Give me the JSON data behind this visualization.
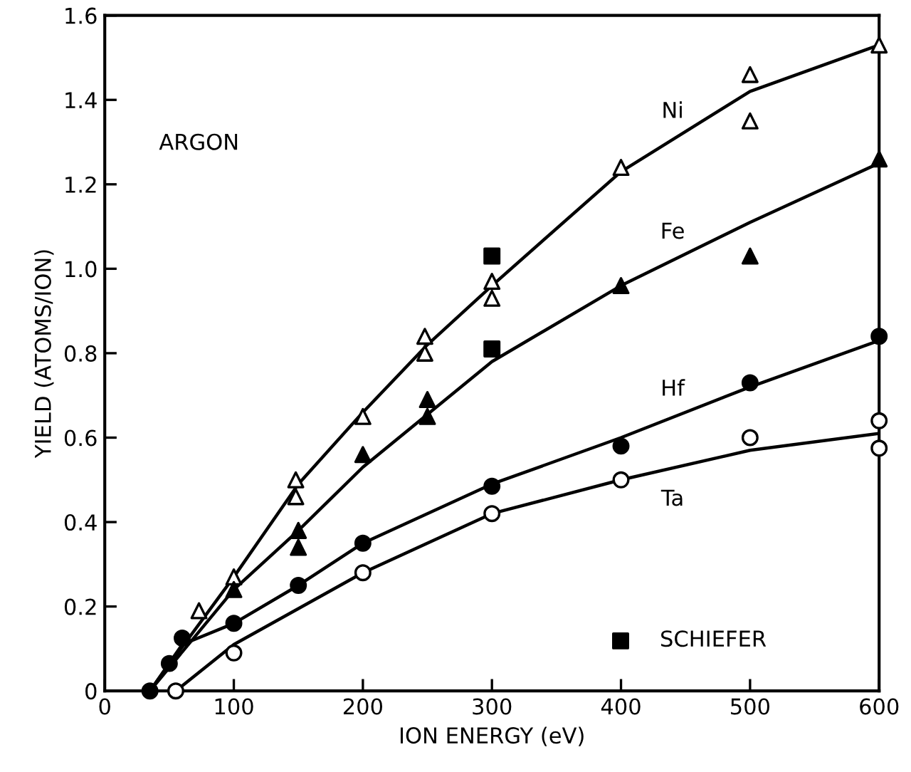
{
  "chart_data": {
    "type": "scatter",
    "xlabel": "ION ENERGY (eV)",
    "ylabel": "YIELD (ATOMS/ION)",
    "xlim": [
      0,
      600
    ],
    "ylim": [
      0,
      1.6
    ],
    "xticks": [
      0,
      100,
      200,
      300,
      400,
      500,
      600
    ],
    "yticks": [
      0,
      0.2,
      0.4,
      0.6,
      0.8,
      {
        "value": 1.0,
        "label": "1.0"
      },
      1.2,
      1.4,
      1.6
    ],
    "legend": "bottom right",
    "series": [
      {
        "marker": "triangle",
        "color": "#ffffff",
        "x": [
          73,
          100,
          148,
          148,
          200,
          248,
          248,
          300,
          300,
          400,
          500,
          500,
          600
        ],
        "values": [
          0.19,
          0.27,
          0.5,
          0.46,
          0.65,
          0.84,
          0.8,
          0.97,
          0.93,
          1.24,
          1.46,
          1.35,
          1.53
        ]
      },
      {
        "type": "line",
        "name": "Ni",
        "marker": "none",
        "color": "#000000",
        "x": [
          35,
          100,
          150,
          200,
          250,
          300,
          400,
          500,
          600
        ],
        "values": [
          0,
          0.27,
          0.49,
          0.66,
          0.82,
          0.96,
          1.23,
          1.42,
          1.53
        ]
      },
      {
        "marker": "triangle",
        "color": "#000000",
        "x": [
          100,
          150,
          150,
          200,
          250,
          250,
          400,
          500,
          600
        ],
        "values": [
          0.24,
          0.38,
          0.34,
          0.56,
          0.69,
          0.65,
          0.96,
          1.03,
          1.26
        ]
      },
      {
        "type": "line",
        "name": "Fe",
        "marker": "none",
        "color": "#000000",
        "x": [
          35,
          100,
          150,
          200,
          300,
          400,
          500,
          600
        ],
        "values": [
          0,
          0.24,
          0.38,
          0.53,
          0.78,
          0.96,
          1.11,
          1.25
        ]
      },
      {
        "marker": "circle",
        "color": "#000000",
        "x": [
          35,
          50,
          60,
          100,
          150,
          200,
          300,
          400,
          500,
          600
        ],
        "values": [
          0,
          0.065,
          0.125,
          0.16,
          0.25,
          0.35,
          0.485,
          0.58,
          0.73,
          0.84
        ]
      },
      {
        "type": "line",
        "name": "Hf",
        "marker": "none",
        "color": "#000000",
        "x": [
          35,
          60,
          100,
          150,
          200,
          300,
          400,
          500,
          600
        ],
        "values": [
          0,
          0.11,
          0.16,
          0.25,
          0.35,
          0.49,
          0.6,
          0.72,
          0.83
        ]
      },
      {
        "marker": "circle",
        "color": "#ffffff",
        "x": [
          55,
          100,
          200,
          300,
          400,
          500,
          600,
          600
        ],
        "values": [
          0,
          0.09,
          0.28,
          0.42,
          0.5,
          0.6,
          0.64,
          0.575
        ]
      },
      {
        "type": "line",
        "name": "Ta",
        "marker": "none",
        "color": "#000000",
        "x": [
          55,
          100,
          200,
          300,
          400,
          500,
          600
        ],
        "values": [
          0,
          0.11,
          0.28,
          0.42,
          0.5,
          0.57,
          0.61
        ]
      },
      {
        "name": "SCHIEFER",
        "marker": "square",
        "color": "#000000",
        "x": [
          300,
          300
        ],
        "values": [
          1.03,
          0.81
        ]
      }
    ],
    "annotations": [
      "ARGON"
    ]
  }
}
